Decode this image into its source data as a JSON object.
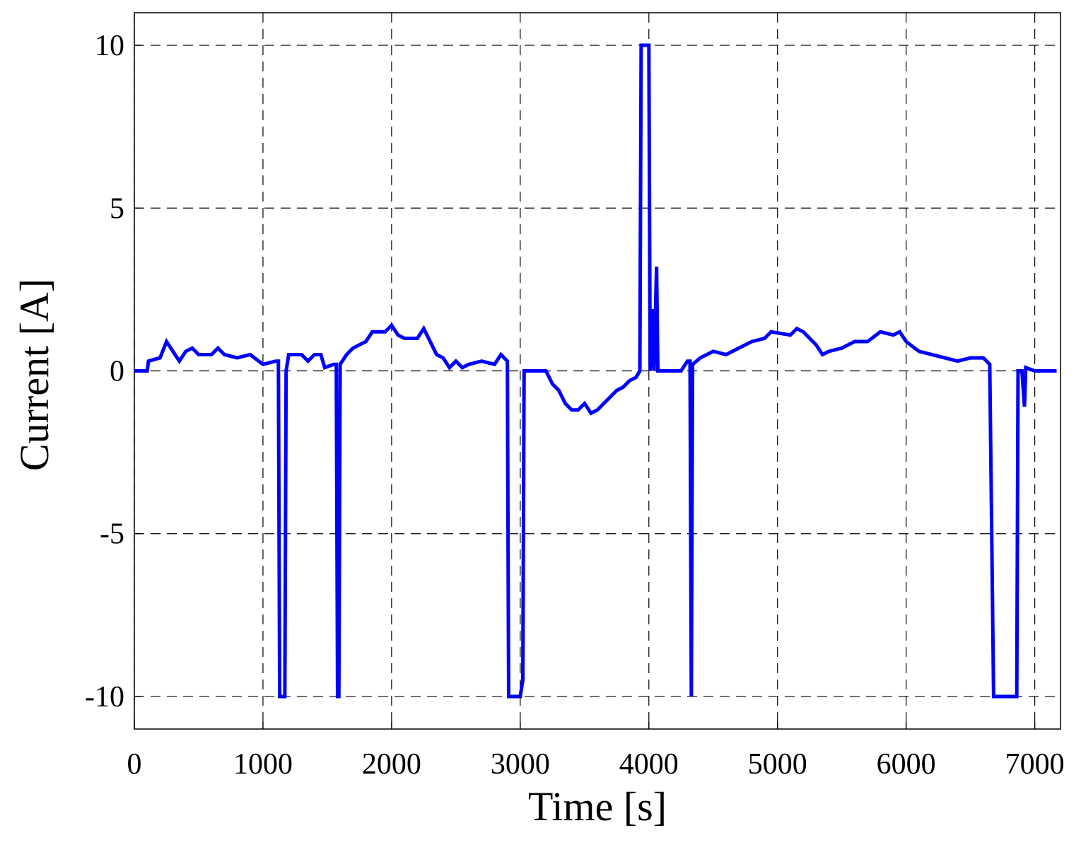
{
  "chart_data": {
    "type": "line",
    "x_label": "Time [s]",
    "y_label": "Current [A]",
    "color": "#0000ff",
    "grid": true,
    "xlim": [
      0,
      7200
    ],
    "ylim": [
      -11,
      11
    ],
    "xticks": [
      0,
      1000,
      2000,
      3000,
      4000,
      5000,
      6000,
      7000
    ],
    "yticks": [
      -10,
      -5,
      0,
      5,
      10
    ],
    "x": [
      0,
      100,
      110,
      200,
      250,
      300,
      350,
      400,
      450,
      500,
      600,
      650,
      700,
      800,
      900,
      1000,
      1100,
      1120,
      1130,
      1170,
      1180,
      1200,
      1300,
      1350,
      1400,
      1450,
      1480,
      1550,
      1570,
      1580,
      1590,
      1600,
      1650,
      1700,
      1800,
      1850,
      1950,
      2000,
      2050,
      2100,
      2200,
      2250,
      2300,
      2350,
      2400,
      2450,
      2500,
      2550,
      2600,
      2700,
      2800,
      2850,
      2900,
      2910,
      3000,
      3020,
      3030,
      3200,
      3250,
      3300,
      3350,
      3400,
      3450,
      3500,
      3550,
      3600,
      3650,
      3700,
      3750,
      3800,
      3850,
      3900,
      3930,
      3940,
      4000,
      4010,
      4030,
      4040,
      4060,
      4070,
      4100,
      4250,
      4300,
      4320,
      4330,
      4340,
      4400,
      4500,
      4600,
      4700,
      4800,
      4900,
      4950,
      5100,
      5150,
      5200,
      5250,
      5300,
      5350,
      5400,
      5500,
      5600,
      5700,
      5800,
      5900,
      5950,
      6000,
      6100,
      6200,
      6300,
      6400,
      6500,
      6600,
      6650,
      6680,
      6860,
      6870,
      6900,
      6920,
      6930,
      7000,
      7170
    ],
    "values": [
      0,
      0,
      0.3,
      0.4,
      0.9,
      0.6,
      0.3,
      0.6,
      0.7,
      0.5,
      0.5,
      0.7,
      0.5,
      0.4,
      0.5,
      0.2,
      0.3,
      0.3,
      -10,
      -10,
      0,
      0.5,
      0.5,
      0.3,
      0.5,
      0.5,
      0.1,
      0.2,
      0.2,
      -10,
      -10,
      0.2,
      0.5,
      0.7,
      0.9,
      1.2,
      1.2,
      1.4,
      1.1,
      1.0,
      1.0,
      1.3,
      0.9,
      0.5,
      0.4,
      0.1,
      0.3,
      0.1,
      0.2,
      0.3,
      0.2,
      0.5,
      0.3,
      -10,
      -10,
      -9.5,
      0,
      0,
      -0.4,
      -0.6,
      -1.0,
      -1.2,
      -1.2,
      -1.0,
      -1.3,
      -1.2,
      -1.0,
      -0.8,
      -0.6,
      -0.5,
      -0.3,
      -0.2,
      0,
      10,
      10,
      0,
      1.9,
      0,
      3.2,
      0,
      0,
      0,
      0.3,
      0.3,
      -10,
      0.2,
      0.4,
      0.6,
      0.5,
      0.7,
      0.9,
      1.0,
      1.2,
      1.1,
      1.3,
      1.2,
      1.0,
      0.8,
      0.5,
      0.6,
      0.7,
      0.9,
      0.9,
      1.2,
      1.1,
      1.2,
      0.9,
      0.6,
      0.5,
      0.4,
      0.3,
      0.4,
      0.4,
      0.2,
      -10,
      -10,
      0,
      0,
      -1.1,
      0.1,
      0,
      0
    ]
  }
}
